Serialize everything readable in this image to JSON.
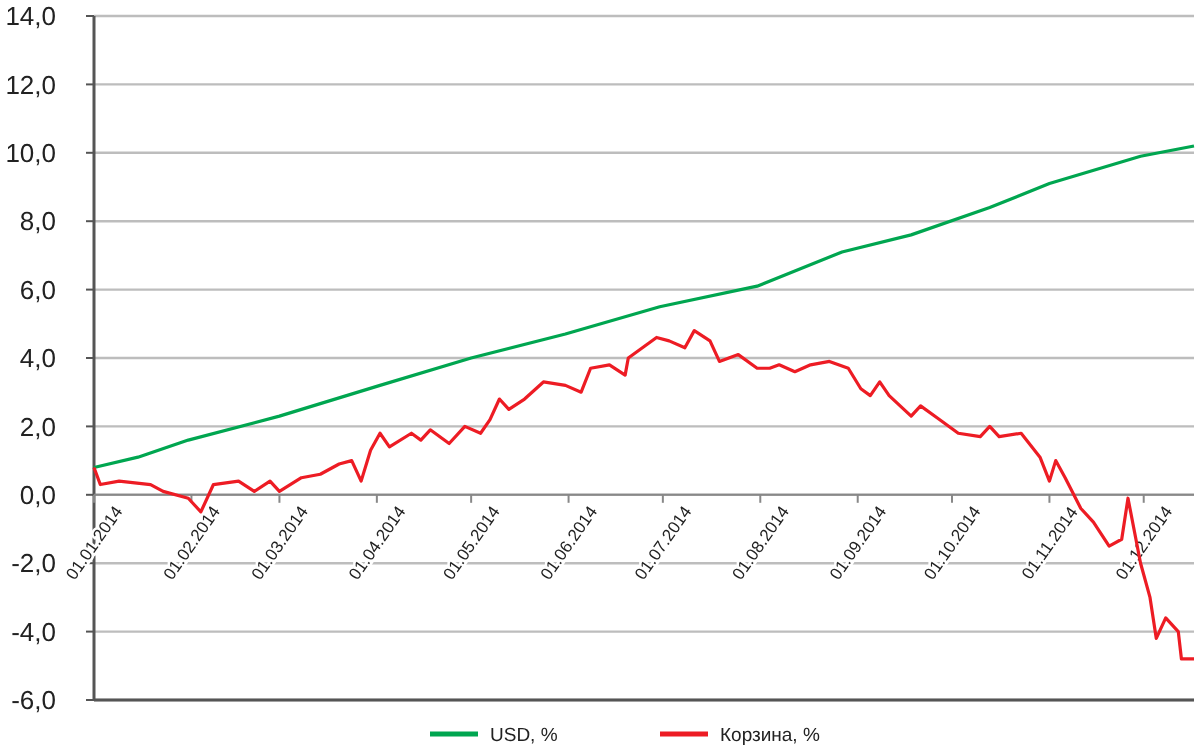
{
  "chart_data": {
    "type": "line",
    "xlim": [
      "2014-01-01",
      "2014-12-17"
    ],
    "xticks": [
      {
        "value": "2014-01-01",
        "label": "01.01.2014"
      },
      {
        "value": "2014-02-01",
        "label": "01.02.2014"
      },
      {
        "value": "2014-03-01",
        "label": "01.03.2014"
      },
      {
        "value": "2014-04-01",
        "label": "01.04.2014"
      },
      {
        "value": "2014-05-01",
        "label": "01.05.2014"
      },
      {
        "value": "2014-06-01",
        "label": "01.06.2014"
      },
      {
        "value": "2014-07-01",
        "label": "01.07.2014"
      },
      {
        "value": "2014-08-01",
        "label": "01.08.2014"
      },
      {
        "value": "2014-09-01",
        "label": "01.09.2014"
      },
      {
        "value": "2014-10-01",
        "label": "01.10.2014"
      },
      {
        "value": "2014-11-01",
        "label": "01.11.2014"
      },
      {
        "value": "2014-12-01",
        "label": "01.12.2014"
      }
    ],
    "ylim": [
      -6,
      14
    ],
    "yticks": [
      {
        "value": -6,
        "label": "-6,0"
      },
      {
        "value": -4,
        "label": "-4,0"
      },
      {
        "value": -2,
        "label": "-2,0"
      },
      {
        "value": 0,
        "label": "0,0"
      },
      {
        "value": 2,
        "label": "2,0"
      },
      {
        "value": 4,
        "label": "4,0"
      },
      {
        "value": 6,
        "label": "6,0"
      },
      {
        "value": 8,
        "label": "8,0"
      },
      {
        "value": 10,
        "label": "10,0"
      },
      {
        "value": 12,
        "label": "12,0"
      },
      {
        "value": 14,
        "label": "14,0"
      }
    ],
    "grid": "y",
    "legend": "bottom",
    "marker": "none",
    "line_style": "solid",
    "series": [
      {
        "name": "USD, %",
        "color": "#00a650",
        "x": [
          "2014-01-01",
          "2014-01-15",
          "2014-01-31",
          "2014-03-01",
          "2014-04-02",
          "2014-05-01",
          "2014-05-31",
          "2014-06-30",
          "2014-07-31",
          "2014-08-27",
          "2014-09-18",
          "2014-10-13",
          "2014-11-01",
          "2014-11-30",
          "2014-12-17"
        ],
        "values": [
          0.8,
          1.1,
          1.6,
          2.3,
          3.2,
          4.0,
          4.7,
          5.5,
          6.1,
          7.1,
          7.6,
          8.4,
          9.1,
          9.9,
          10.2
        ]
      },
      {
        "name": "Корзина, %",
        "color": "#ed1c24",
        "x": [
          "2014-01-01",
          "2014-01-03",
          "2014-01-09",
          "2014-01-19",
          "2014-01-23",
          "2014-01-31",
          "2014-02-04",
          "2014-02-08",
          "2014-02-16",
          "2014-02-21",
          "2014-02-26",
          "2014-03-01",
          "2014-03-08",
          "2014-03-14",
          "2014-03-20",
          "2014-03-24",
          "2014-03-27",
          "2014-03-30",
          "2014-04-02",
          "2014-04-05",
          "2014-04-12",
          "2014-04-15",
          "2014-04-18",
          "2014-04-24",
          "2014-04-29",
          "2014-05-04",
          "2014-05-07",
          "2014-05-10",
          "2014-05-13",
          "2014-05-18",
          "2014-05-24",
          "2014-05-31",
          "2014-06-05",
          "2014-06-08",
          "2014-06-14",
          "2014-06-19",
          "2014-06-20",
          "2014-06-29",
          "2014-07-03",
          "2014-07-08",
          "2014-07-11",
          "2014-07-16",
          "2014-07-19",
          "2014-07-25",
          "2014-07-31",
          "2014-08-04",
          "2014-08-07",
          "2014-08-12",
          "2014-08-17",
          "2014-08-23",
          "2014-08-29",
          "2014-09-02",
          "2014-09-05",
          "2014-09-08",
          "2014-09-11",
          "2014-09-18",
          "2014-09-21",
          "2014-09-27",
          "2014-10-03",
          "2014-10-10",
          "2014-10-13",
          "2014-10-16",
          "2014-10-23",
          "2014-10-29",
          "2014-11-01",
          "2014-11-03",
          "2014-11-06",
          "2014-11-11",
          "2014-11-15",
          "2014-11-20",
          "2014-11-24",
          "2014-11-26",
          "2014-11-30",
          "2014-12-03",
          "2014-12-05",
          "2014-12-08",
          "2014-12-12",
          "2014-12-13",
          "2014-12-17"
        ],
        "values": [
          0.8,
          0.3,
          0.4,
          0.3,
          0.1,
          -0.1,
          -0.5,
          0.3,
          0.4,
          0.1,
          0.4,
          0.1,
          0.5,
          0.6,
          0.9,
          1.0,
          0.4,
          1.3,
          1.8,
          1.4,
          1.8,
          1.6,
          1.9,
          1.5,
          2.0,
          1.8,
          2.2,
          2.8,
          2.5,
          2.8,
          3.3,
          3.2,
          3.0,
          3.7,
          3.8,
          3.5,
          4.0,
          4.6,
          4.5,
          4.3,
          4.8,
          4.5,
          3.9,
          4.1,
          3.7,
          3.7,
          3.8,
          3.6,
          3.8,
          3.9,
          3.7,
          3.1,
          2.9,
          3.3,
          2.9,
          2.3,
          2.6,
          2.2,
          1.8,
          1.7,
          2.0,
          1.7,
          1.8,
          1.1,
          0.4,
          1.0,
          0.5,
          -0.4,
          -0.8,
          -1.5,
          -1.3,
          -0.1,
          -2.0,
          -3.0,
          -4.2,
          -3.6,
          -4.0,
          -4.8,
          -4.8
        ]
      }
    ]
  }
}
